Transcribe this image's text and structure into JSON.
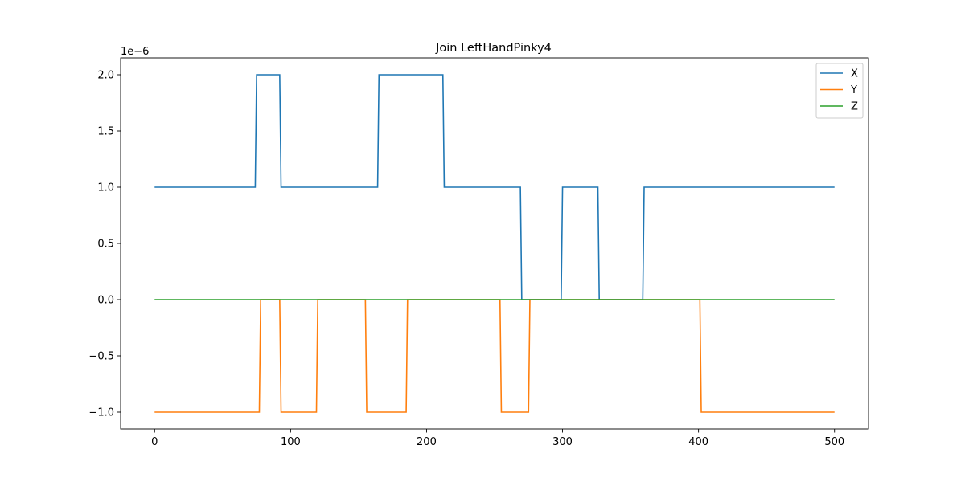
{
  "chart_data": {
    "type": "line",
    "title": "Join LeftHandPinky4",
    "xlabel": "",
    "ylabel": "",
    "xlim": [
      -25,
      525
    ],
    "ylim": [
      -1.15,
      2.15
    ],
    "y_offset_text": "1e−6",
    "x_ticks": [
      0,
      100,
      200,
      300,
      400,
      500
    ],
    "x_tick_labels": [
      "0",
      "100",
      "200",
      "300",
      "400",
      "500"
    ],
    "y_ticks": [
      -1.0,
      -0.5,
      0.0,
      0.5,
      1.0,
      1.5,
      2.0
    ],
    "y_tick_labels": [
      "−1.0",
      "−0.5",
      "0.0",
      "0.5",
      "1.0",
      "1.5",
      "2.0"
    ],
    "grid": false,
    "legend_position": "top-right",
    "series": [
      {
        "name": "X",
        "color": "#1f77b4",
        "points": [
          [
            0,
            1
          ],
          [
            74,
            1
          ],
          [
            75,
            2
          ],
          [
            92,
            2
          ],
          [
            93,
            1
          ],
          [
            164,
            1
          ],
          [
            165,
            2
          ],
          [
            212,
            2
          ],
          [
            213,
            1
          ],
          [
            269,
            1
          ],
          [
            270,
            0
          ],
          [
            299,
            0
          ],
          [
            300,
            1
          ],
          [
            326,
            1
          ],
          [
            327,
            0
          ],
          [
            359,
            0
          ],
          [
            360,
            1
          ],
          [
            500,
            1
          ]
        ]
      },
      {
        "name": "Y",
        "color": "#ff7f0e",
        "points": [
          [
            0,
            -1
          ],
          [
            77,
            -1
          ],
          [
            78,
            0
          ],
          [
            92,
            0
          ],
          [
            93,
            -1
          ],
          [
            119,
            -1
          ],
          [
            120,
            0
          ],
          [
            155,
            0
          ],
          [
            156,
            -1
          ],
          [
            185,
            -1
          ],
          [
            186,
            0
          ],
          [
            254,
            0
          ],
          [
            255,
            -1
          ],
          [
            275,
            -1
          ],
          [
            276,
            0
          ],
          [
            401,
            0
          ],
          [
            402,
            -1
          ],
          [
            500,
            -1
          ]
        ]
      },
      {
        "name": "Z",
        "color": "#2ca02c",
        "points": [
          [
            0,
            0
          ],
          [
            500,
            0
          ]
        ]
      }
    ]
  }
}
